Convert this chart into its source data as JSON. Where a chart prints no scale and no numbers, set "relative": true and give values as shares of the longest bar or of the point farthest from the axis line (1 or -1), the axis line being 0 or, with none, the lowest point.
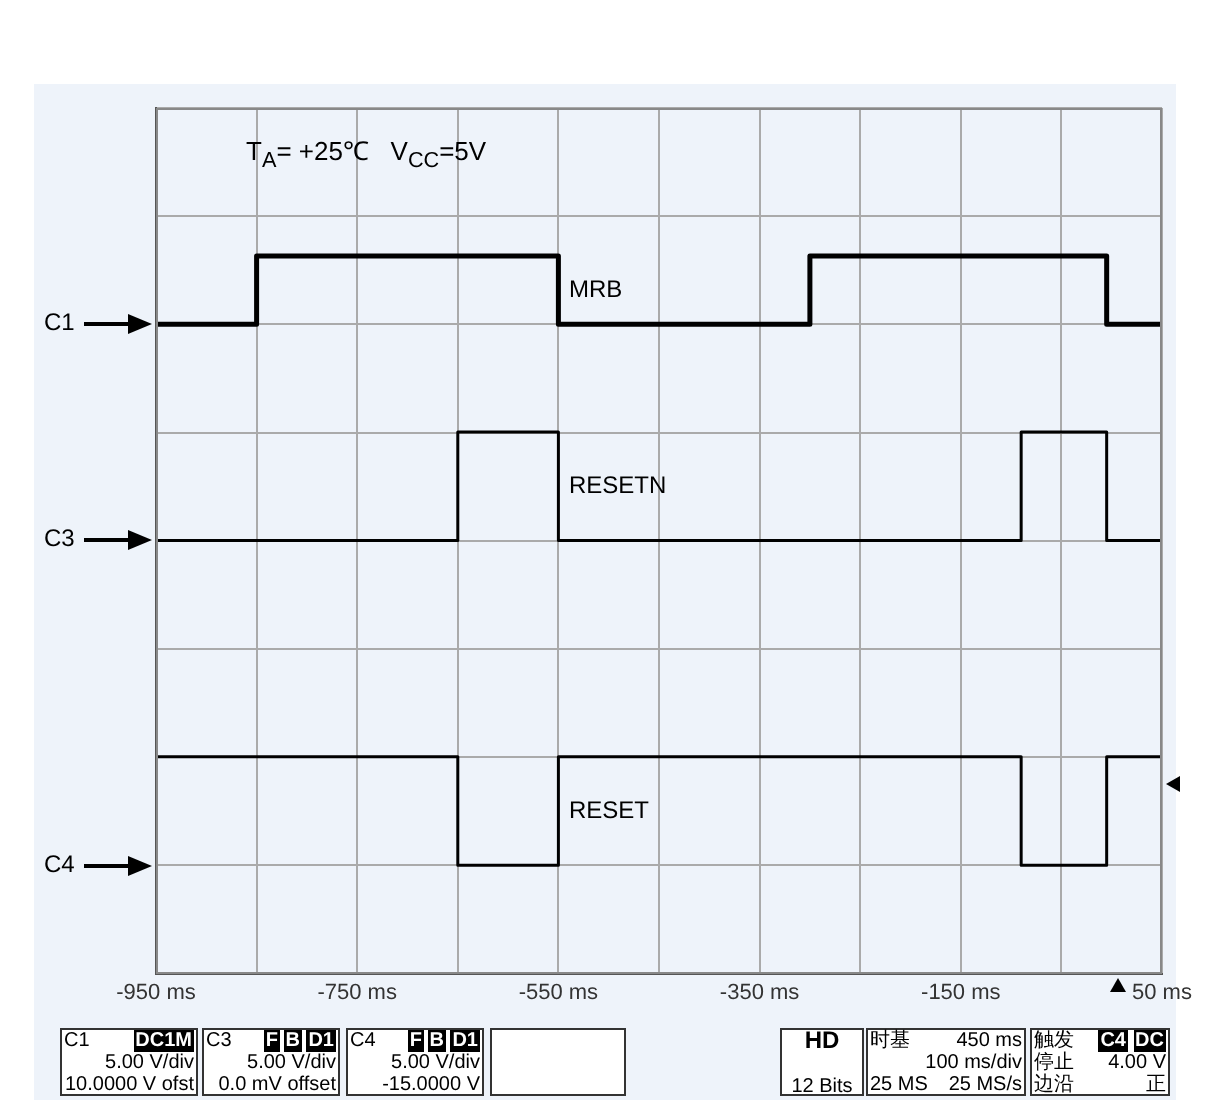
{
  "chart_data": {
    "type": "step",
    "relative": true,
    "grid": true,
    "legend": false,
    "tick_labels": "x",
    "marker": "none",
    "line_style": "solid",
    "xlim": [
      -950,
      50
    ],
    "xticks": [
      {
        "value": -950,
        "label": "-950 ms"
      },
      {
        "value": -850,
        "label": null
      },
      {
        "value": -750,
        "label": "-750 ms"
      },
      {
        "value": -650,
        "label": null
      },
      {
        "value": -550,
        "label": "-550 ms"
      },
      {
        "value": -450,
        "label": null
      },
      {
        "value": -350,
        "label": "-350 ms"
      },
      {
        "value": -250,
        "label": null
      },
      {
        "value": -150,
        "label": "-150 ms"
      },
      {
        "value": -50,
        "label": null
      },
      {
        "value": 50,
        "label": "50 ms"
      }
    ],
    "series": [
      {
        "name": "MRB",
        "color": "#000000",
        "x": [
          -950,
          -850,
          -550,
          -300,
          -5,
          50
        ],
        "values": [
          0.888,
          1,
          0.888,
          1,
          0.888,
          0.888
        ]
      },
      {
        "name": "RESETN",
        "color": "#000000",
        "x": [
          -950,
          -650,
          -550,
          -90,
          -5,
          50
        ],
        "values": [
          0.533,
          0.711,
          0.533,
          0.711,
          0.533,
          0.533
        ]
      },
      {
        "name": "RESET",
        "color": "#000000",
        "x": [
          -950,
          -650,
          -550,
          -90,
          -5,
          50
        ],
        "values": [
          0.178,
          0,
          0.178,
          0,
          0.178,
          0.178
        ]
      }
    ],
    "annotations": [
      "T$_{A}$= +25℃   V$_{CC}$=5V",
      "C1",
      "C3",
      "C4",
      "C1",
      "DC1M",
      "5.00 V/div",
      "10.0000 V ofst",
      "C3",
      "F",
      "B",
      "D1",
      "5.00 V/div",
      "0.0 mV offset",
      "C4",
      "F",
      "B",
      "D1",
      "5.00 V/div",
      "-15.0000 V",
      "HD",
      "12 Bits",
      "时基",
      "450 ms",
      "100 ms/div",
      "25 MS",
      "25 MS/s",
      "触发",
      "C4",
      "DC",
      "停止",
      "4.00 V",
      "边沿",
      "正"
    ]
  }
}
